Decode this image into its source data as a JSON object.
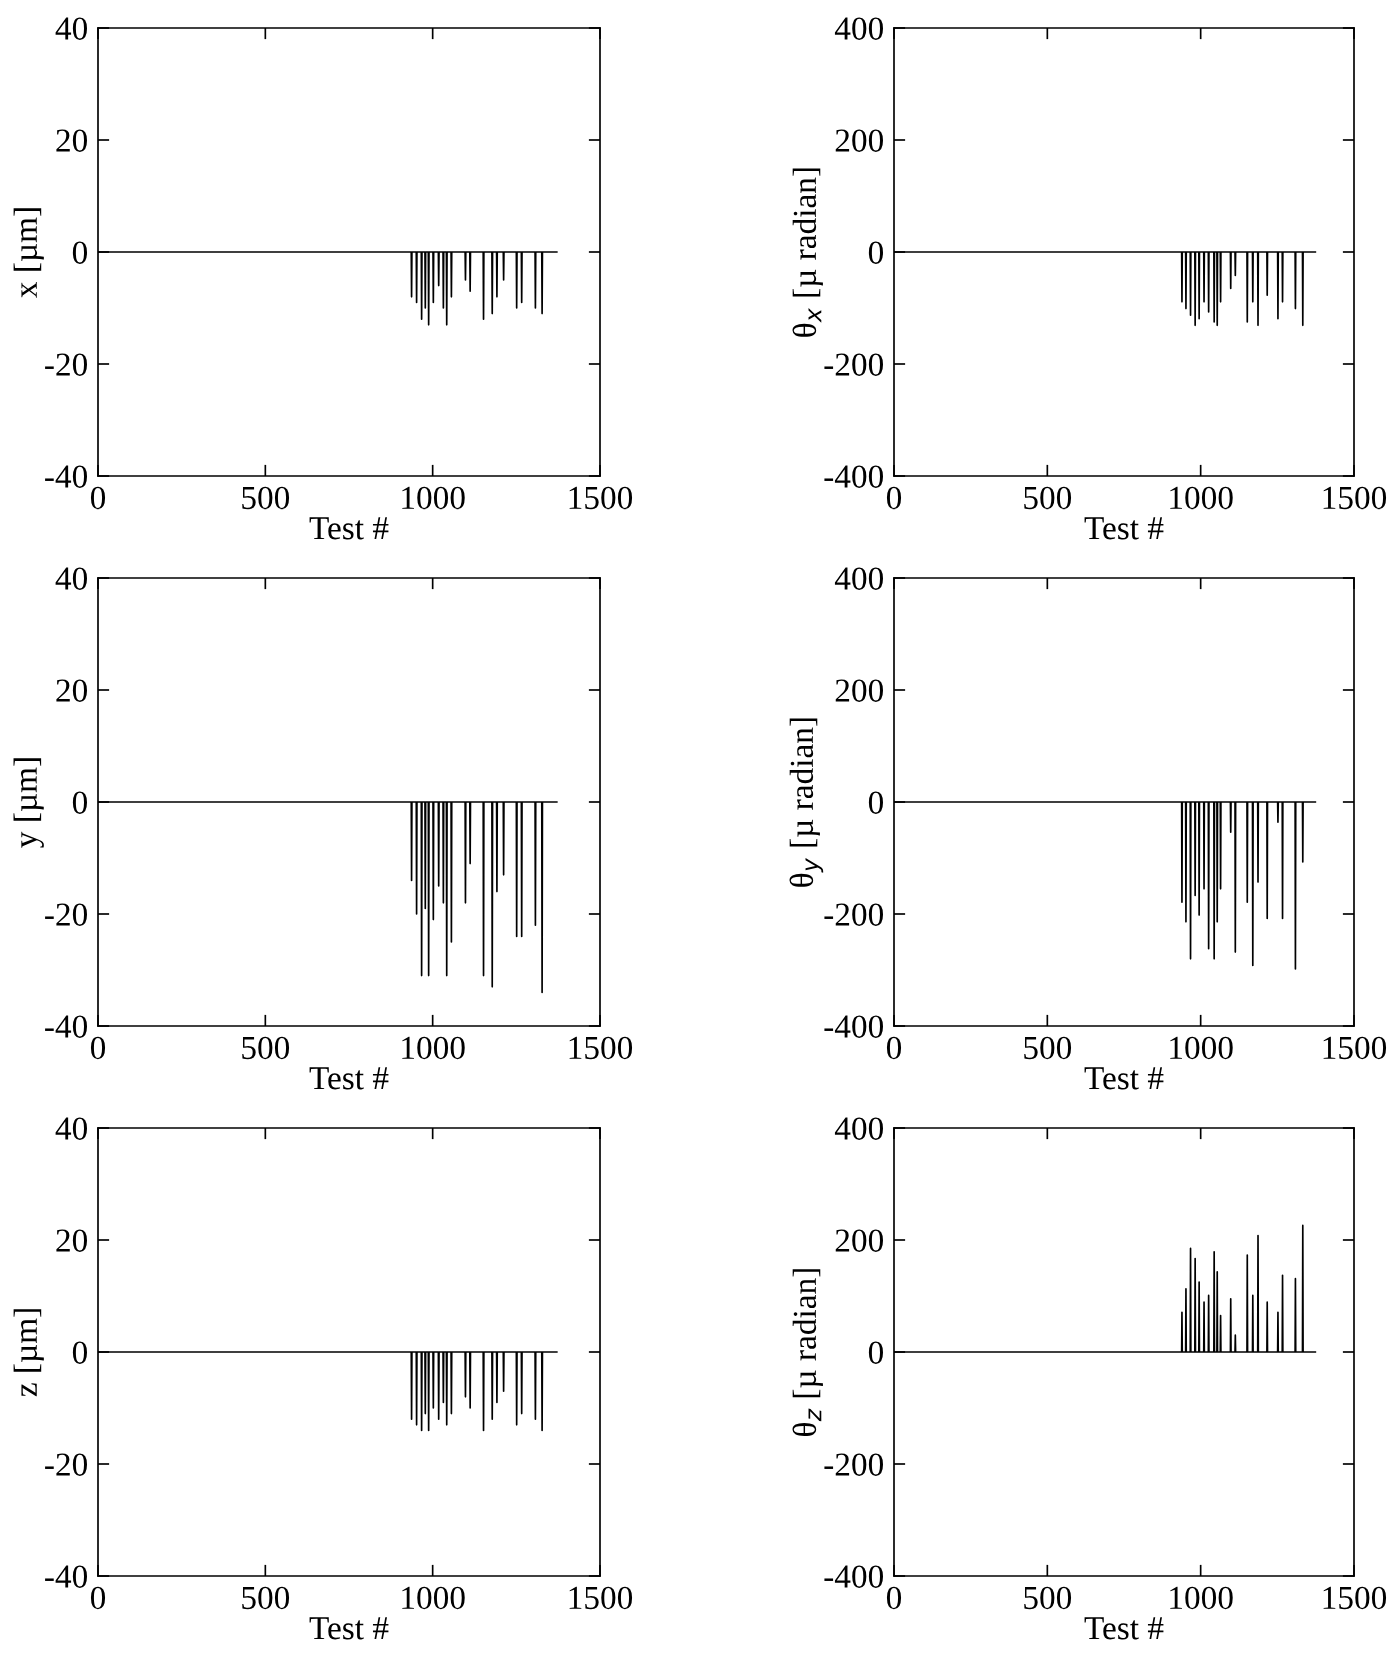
{
  "chart_data": [
    {
      "type": "line",
      "xlabel": "Test #",
      "ylabel": "x [µm]",
      "xlim": [
        0,
        1500
      ],
      "xticks": [
        0,
        500,
        1000,
        1500
      ],
      "ylim": [
        -40,
        40
      ],
      "yticks": [
        -40,
        -20,
        0,
        20,
        40
      ],
      "grid": false,
      "marker": "none",
      "line_style": "solid",
      "x": [
        0,
        936,
        937,
        938,
        951,
        952,
        953,
        966,
        967,
        968,
        977,
        978,
        979,
        987,
        988,
        989,
        1001,
        1002,
        1003,
        1017,
        1018,
        1019,
        1031,
        1032,
        1033,
        1041,
        1042,
        1043,
        1055,
        1056,
        1057,
        1097,
        1098,
        1099,
        1111,
        1112,
        1113,
        1151,
        1152,
        1153,
        1177,
        1178,
        1179,
        1191,
        1192,
        1193,
        1211,
        1212,
        1213,
        1250,
        1251,
        1252,
        1265,
        1266,
        1267,
        1306,
        1307,
        1308,
        1326,
        1327,
        1328,
        1371
      ],
      "series": [
        {
          "color": "#000000",
          "values": [
            0,
            0,
            -8,
            0,
            0,
            -9,
            0,
            0,
            -12,
            0,
            0,
            -10,
            0,
            0,
            -13,
            0,
            0,
            -9,
            0,
            0,
            -6,
            0,
            0,
            -10,
            0,
            0,
            -13,
            0,
            0,
            -8,
            0,
            0,
            -5,
            0,
            0,
            -7,
            0,
            0,
            -12,
            0,
            0,
            -11,
            0,
            0,
            -8,
            0,
            0,
            -5,
            0,
            0,
            -10,
            0,
            0,
            -9,
            0,
            0,
            -10,
            0,
            0,
            -11,
            0,
            0
          ]
        }
      ]
    },
    {
      "type": "line",
      "xlabel": "Test #",
      "ylabel": "θ$_{x}$ [µ radian]",
      "xlim": [
        0,
        1500
      ],
      "xticks": [
        0,
        500,
        1000,
        1500
      ],
      "ylim": [
        -400,
        400
      ],
      "yticks": [
        -400,
        -200,
        0,
        200,
        400
      ],
      "grid": false,
      "marker": "none",
      "line_style": "solid",
      "x": [
        0,
        938,
        939,
        940,
        951,
        952,
        953,
        966,
        967,
        968,
        981,
        982,
        983,
        994,
        995,
        996,
        1010,
        1011,
        1012,
        1025,
        1026,
        1027,
        1043,
        1044,
        1045,
        1053,
        1054,
        1055,
        1064,
        1065,
        1066,
        1097,
        1098,
        1099,
        1112,
        1113,
        1114,
        1151,
        1152,
        1153,
        1169,
        1170,
        1171,
        1186,
        1187,
        1188,
        1216,
        1217,
        1218,
        1251,
        1252,
        1253,
        1266,
        1267,
        1268,
        1308,
        1309,
        1310,
        1332,
        1333,
        1334,
        1374
      ],
      "series": [
        {
          "color": "#000000",
          "values": [
            0,
            0,
            -89,
            0,
            0,
            -101,
            0,
            0,
            -113,
            0,
            0,
            -131,
            0,
            0,
            -119,
            0,
            0,
            -89,
            0,
            0,
            -107,
            0,
            0,
            -125,
            0,
            0,
            -131,
            0,
            0,
            -89,
            0,
            0,
            -65,
            0,
            0,
            -42,
            0,
            0,
            -125,
            0,
            0,
            -89,
            0,
            0,
            -131,
            0,
            0,
            -77,
            0,
            0,
            -119,
            0,
            0,
            -89,
            0,
            0,
            -101,
            0,
            0,
            -131,
            0,
            0
          ]
        }
      ]
    },
    {
      "type": "line",
      "xlabel": "Test #",
      "ylabel": "y [µm]",
      "xlim": [
        0,
        1500
      ],
      "xticks": [
        0,
        500,
        1000,
        1500
      ],
      "ylim": [
        -40,
        40
      ],
      "yticks": [
        -40,
        -20,
        0,
        20,
        40
      ],
      "grid": false,
      "marker": "none",
      "line_style": "solid",
      "x": [
        0,
        936,
        937,
        938,
        951,
        952,
        953,
        966,
        967,
        968,
        977,
        978,
        979,
        987,
        988,
        989,
        1001,
        1002,
        1003,
        1017,
        1018,
        1019,
        1031,
        1032,
        1033,
        1041,
        1042,
        1043,
        1055,
        1056,
        1057,
        1097,
        1098,
        1099,
        1111,
        1112,
        1113,
        1151,
        1152,
        1153,
        1177,
        1178,
        1179,
        1191,
        1192,
        1193,
        1211,
        1212,
        1213,
        1250,
        1251,
        1252,
        1265,
        1266,
        1267,
        1306,
        1307,
        1308,
        1326,
        1327,
        1328,
        1371
      ],
      "series": [
        {
          "color": "#000000",
          "values": [
            0,
            0,
            -14,
            0,
            0,
            -20,
            0,
            0,
            -31,
            0,
            0,
            -19,
            0,
            0,
            -31,
            0,
            0,
            -21,
            0,
            0,
            -15,
            0,
            0,
            -18,
            0,
            0,
            -31,
            0,
            0,
            -25,
            0,
            0,
            -18,
            0,
            0,
            -11,
            0,
            0,
            -31,
            0,
            0,
            -33,
            0,
            0,
            -16,
            0,
            0,
            -13,
            0,
            0,
            -24,
            0,
            0,
            -24,
            0,
            0,
            -22,
            0,
            0,
            -34,
            0,
            0
          ]
        }
      ]
    },
    {
      "type": "line",
      "xlabel": "Test #",
      "ylabel": "θ$_{y}$ [µ radian]",
      "xlim": [
        0,
        1500
      ],
      "xticks": [
        0,
        500,
        1000,
        1500
      ],
      "ylim": [
        -400,
        400
      ],
      "yticks": [
        -400,
        -200,
        0,
        200,
        400
      ],
      "grid": false,
      "marker": "none",
      "line_style": "solid",
      "x": [
        0,
        938,
        939,
        940,
        951,
        952,
        953,
        966,
        967,
        968,
        981,
        982,
        983,
        994,
        995,
        996,
        1010,
        1011,
        1012,
        1025,
        1026,
        1027,
        1043,
        1044,
        1045,
        1053,
        1054,
        1055,
        1064,
        1065,
        1066,
        1097,
        1098,
        1099,
        1112,
        1113,
        1114,
        1151,
        1152,
        1153,
        1169,
        1170,
        1171,
        1186,
        1187,
        1188,
        1216,
        1217,
        1218,
        1251,
        1252,
        1253,
        1266,
        1267,
        1268,
        1308,
        1309,
        1310,
        1332,
        1333,
        1334,
        1374
      ],
      "series": [
        {
          "color": "#000000",
          "values": [
            0,
            0,
            -179,
            0,
            0,
            -214,
            0,
            0,
            -280,
            0,
            0,
            -167,
            0,
            0,
            -202,
            0,
            0,
            -155,
            0,
            0,
            -262,
            0,
            0,
            -280,
            0,
            0,
            -214,
            0,
            0,
            -155,
            0,
            0,
            -54,
            0,
            0,
            -268,
            0,
            0,
            -179,
            0,
            0,
            -292,
            0,
            0,
            -143,
            0,
            0,
            -208,
            0,
            0,
            -36,
            0,
            0,
            -208,
            0,
            0,
            -298,
            0,
            0,
            -107,
            0,
            0
          ]
        }
      ]
    },
    {
      "type": "line",
      "xlabel": "Test #",
      "ylabel": "z [µm]",
      "xlim": [
        0,
        1500
      ],
      "xticks": [
        0,
        500,
        1000,
        1500
      ],
      "ylim": [
        -40,
        40
      ],
      "yticks": [
        -40,
        -20,
        0,
        20,
        40
      ],
      "grid": false,
      "marker": "none",
      "line_style": "solid",
      "x": [
        0,
        936,
        937,
        938,
        951,
        952,
        953,
        966,
        967,
        968,
        977,
        978,
        979,
        987,
        988,
        989,
        1001,
        1002,
        1003,
        1017,
        1018,
        1019,
        1031,
        1032,
        1033,
        1041,
        1042,
        1043,
        1055,
        1056,
        1057,
        1097,
        1098,
        1099,
        1111,
        1112,
        1113,
        1151,
        1152,
        1153,
        1177,
        1178,
        1179,
        1191,
        1192,
        1193,
        1211,
        1212,
        1213,
        1250,
        1251,
        1252,
        1265,
        1266,
        1267,
        1306,
        1307,
        1308,
        1326,
        1327,
        1328,
        1371
      ],
      "series": [
        {
          "color": "#000000",
          "values": [
            0,
            0,
            -12,
            0,
            0,
            -13,
            0,
            0,
            -14,
            0,
            0,
            -11,
            0,
            0,
            -14,
            0,
            0,
            -10,
            0,
            0,
            -12,
            0,
            0,
            -9,
            0,
            0,
            -13,
            0,
            0,
            -11,
            0,
            0,
            -8,
            0,
            0,
            -10,
            0,
            0,
            -14,
            0,
            0,
            -12,
            0,
            0,
            -9,
            0,
            0,
            -7,
            0,
            0,
            -13,
            0,
            0,
            -11,
            0,
            0,
            -12,
            0,
            0,
            -14,
            0,
            0
          ]
        }
      ]
    },
    {
      "type": "line",
      "xlabel": "Test #",
      "ylabel": "θ$_{z}$ [µ radian]",
      "xlim": [
        0,
        1500
      ],
      "xticks": [
        0,
        500,
        1000,
        1500
      ],
      "ylim": [
        -400,
        400
      ],
      "yticks": [
        -400,
        -200,
        0,
        200,
        400
      ],
      "grid": false,
      "marker": "none",
      "line_style": "solid",
      "x": [
        0,
        938,
        939,
        940,
        951,
        952,
        953,
        966,
        967,
        968,
        981,
        982,
        983,
        994,
        995,
        996,
        1010,
        1011,
        1012,
        1025,
        1026,
        1027,
        1043,
        1044,
        1045,
        1053,
        1054,
        1055,
        1064,
        1065,
        1066,
        1097,
        1098,
        1099,
        1112,
        1113,
        1114,
        1151,
        1152,
        1153,
        1169,
        1170,
        1171,
        1186,
        1187,
        1188,
        1216,
        1217,
        1218,
        1251,
        1252,
        1253,
        1266,
        1267,
        1268,
        1308,
        1309,
        1310,
        1332,
        1333,
        1334,
        1374
      ],
      "series": [
        {
          "color": "#000000",
          "values": [
            0,
            0,
            71,
            0,
            0,
            113,
            0,
            0,
            185,
            0,
            0,
            167,
            0,
            0,
            125,
            0,
            0,
            89,
            0,
            0,
            101,
            0,
            0,
            179,
            0,
            0,
            143,
            0,
            0,
            65,
            0,
            0,
            95,
            0,
            0,
            30,
            0,
            0,
            173,
            0,
            0,
            101,
            0,
            0,
            208,
            0,
            0,
            89,
            0,
            0,
            71,
            0,
            0,
            137,
            0,
            0,
            131,
            0,
            0,
            226,
            0,
            0
          ]
        }
      ]
    }
  ]
}
